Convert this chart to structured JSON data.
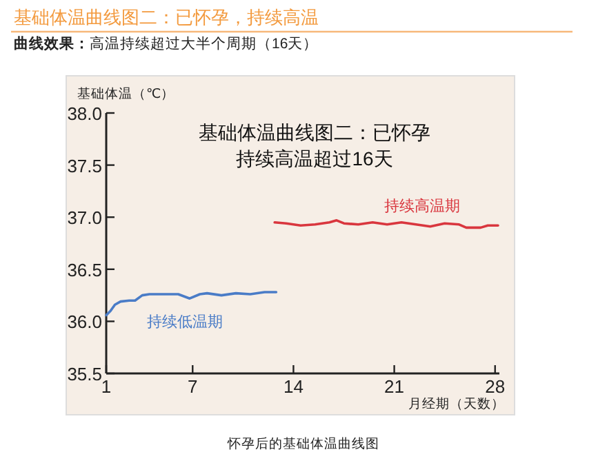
{
  "chart_data": {
    "type": "line",
    "title": "基础体温曲线图二：已怀孕，持续高温",
    "subtitle": "曲线效果：高温持续超过大半个周期（16天）",
    "xlabel": "月经期（天数）",
    "ylabel": "基础体温（℃）",
    "xlim": [
      1,
      28.3
    ],
    "xticks": [
      1,
      7,
      14,
      21,
      28
    ],
    "ylim": [
      35.5,
      38.0
    ],
    "yticks": [
      {
        "value": 35.5,
        "label": "35.5"
      },
      {
        "value": 36.0,
        "label": "36.0"
      },
      {
        "value": 36.5,
        "label": "36.5"
      },
      {
        "value": 37.0,
        "label": "37.0"
      },
      {
        "value": 37.5,
        "label": "37.5"
      },
      {
        "value": 38.0,
        "label": "38.0"
      }
    ],
    "grid": false,
    "marker": "none",
    "line_style": "solid",
    "series": [
      {
        "color": "#4a7cc7",
        "x": [
          1,
          1.3,
          1.6,
          2,
          2.6,
          3,
          3.5,
          4,
          5,
          6,
          6.8,
          7.5,
          8,
          9,
          10,
          11,
          12,
          12.8
        ],
        "values": [
          36.06,
          36.1,
          36.16,
          36.19,
          36.2,
          36.2,
          36.25,
          36.26,
          36.26,
          36.26,
          36.22,
          36.26,
          36.27,
          36.25,
          36.27,
          36.26,
          36.28,
          36.28
        ]
      },
      {
        "color": "#d9363e",
        "x": [
          12.7,
          13.5,
          14.5,
          15.5,
          16.5,
          17,
          17.5,
          18.5,
          19.5,
          20.5,
          21.5,
          22.5,
          23.5,
          24.5,
          25.5,
          26,
          27,
          27.5,
          28.2
        ],
        "values": [
          36.95,
          36.94,
          36.92,
          36.93,
          36.95,
          36.97,
          36.94,
          36.93,
          36.95,
          36.93,
          36.95,
          36.93,
          36.91,
          36.94,
          36.93,
          36.9,
          36.9,
          36.92,
          36.92
        ]
      }
    ],
    "annotations": [
      "基础体温曲线图二：已怀孕",
      "持续高温超过16天",
      "持续低温期",
      "持续高温期",
      "怀孕后的基础体温曲线图"
    ]
  }
}
